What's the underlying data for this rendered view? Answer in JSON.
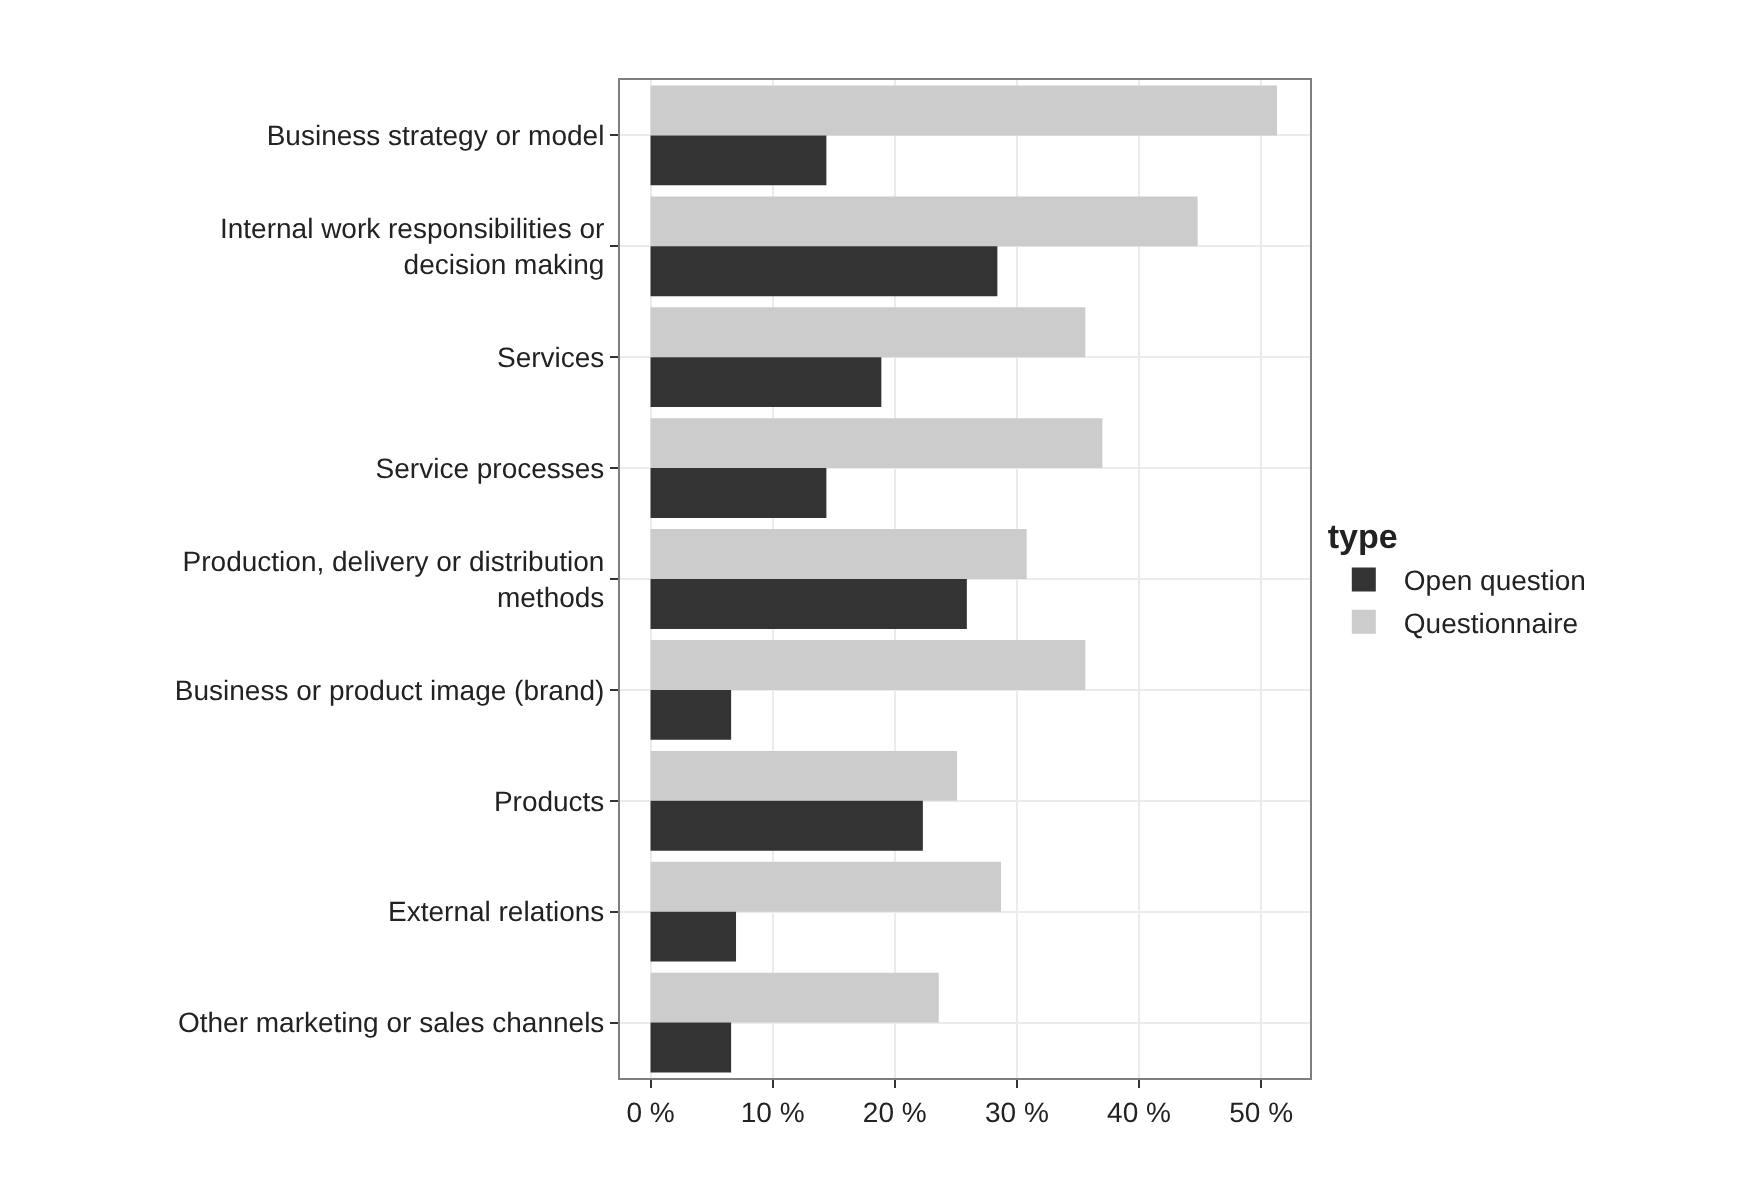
{
  "chart_data": {
    "type": "bar",
    "orientation": "horizontal",
    "legend_title": "type",
    "legend": "right",
    "grid": true,
    "categories": [
      "Business strategy or model",
      "Internal work responsibilities or\ndecision making",
      "Services",
      "Service processes",
      "Production, delivery or distribution\nmethods",
      "Business or product image (brand)",
      "Products",
      "External relations",
      "Other marketing or sales channels"
    ],
    "series": [
      {
        "name": "Open question",
        "color": "#333333",
        "values": [
          14.4,
          28.4,
          18.9,
          14.4,
          25.9,
          6.6,
          22.3,
          7.0,
          6.6
        ]
      },
      {
        "name": "Questionnaire",
        "color": "#cccccc",
        "values": [
          51.3,
          44.8,
          35.6,
          37.0,
          30.8,
          35.6,
          25.1,
          28.7,
          23.6
        ]
      }
    ],
    "xlim": [
      -2.5,
      54
    ],
    "xticks": [
      {
        "value": 0,
        "label": "0 %"
      },
      {
        "value": 10,
        "label": "10 %"
      },
      {
        "value": 20,
        "label": "20 %"
      },
      {
        "value": 30,
        "label": "30 %"
      },
      {
        "value": 40,
        "label": "40 %"
      },
      {
        "value": 50,
        "label": "50 %"
      }
    ]
  }
}
